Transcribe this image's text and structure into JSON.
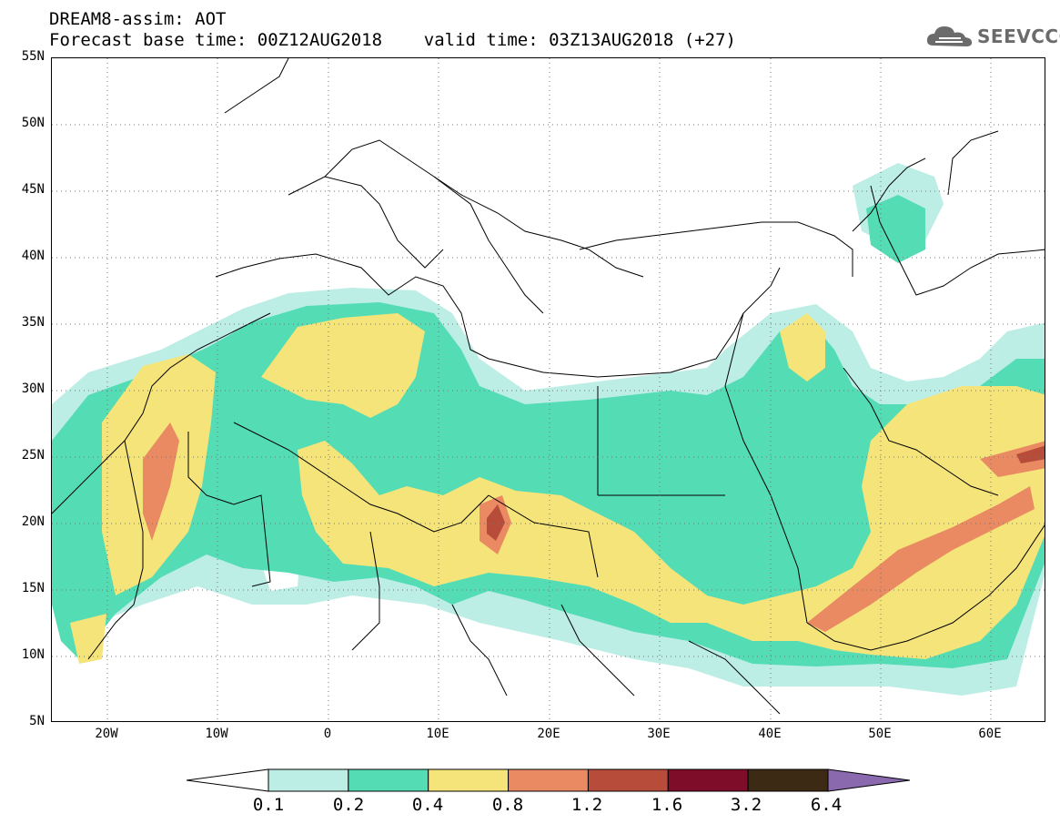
{
  "header": {
    "line1": "DREAM8-assim: AOT",
    "line2": "Forecast base time: 00Z12AUG2018    valid time: 03Z13AUG2018 (+27)"
  },
  "logo": {
    "text": "SEEVCCC",
    "icon": "cloud-icon"
  },
  "map": {
    "lat_labels": [
      "55N",
      "50N",
      "45N",
      "40N",
      "35N",
      "30N",
      "25N",
      "20N",
      "15N",
      "10N",
      "5N"
    ],
    "lon_labels": [
      "20W",
      "10W",
      "0",
      "10E",
      "20E",
      "30E",
      "40E",
      "50E",
      "60E"
    ],
    "lon_range": [
      -25,
      65
    ],
    "lat_range": [
      5,
      55
    ],
    "grid": "dotted"
  },
  "legend": {
    "colors": [
      "#bdeee6",
      "#54dcb4",
      "#f5e47a",
      "#e98a62",
      "#b84c3b",
      "#7d0d28",
      "#3c2a14",
      "#8a69ae"
    ],
    "labels": [
      "0.1",
      "0.2",
      "0.4",
      "0.8",
      "1.2",
      "1.6",
      "3.2",
      "6.4"
    ]
  }
}
